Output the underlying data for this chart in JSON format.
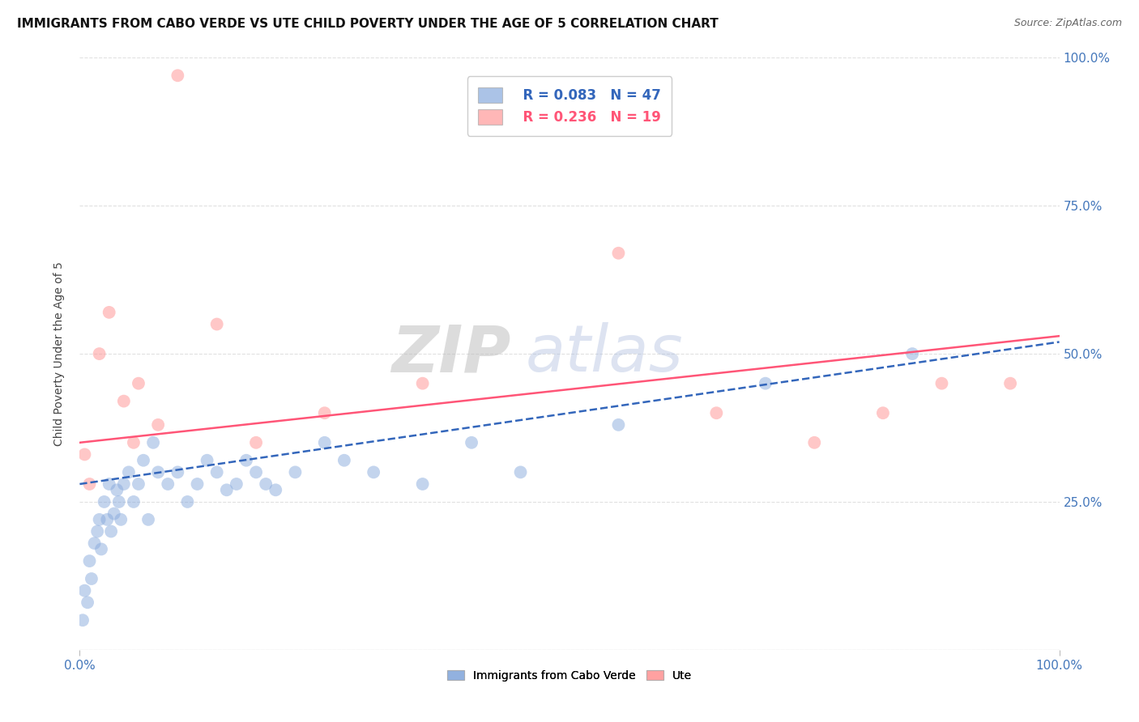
{
  "title": "IMMIGRANTS FROM CABO VERDE VS UTE CHILD POVERTY UNDER THE AGE OF 5 CORRELATION CHART",
  "source": "Source: ZipAtlas.com",
  "ylabel": "Child Poverty Under the Age of 5",
  "legend_blue_label": "Immigrants from Cabo Verde",
  "legend_pink_label": "Ute",
  "legend_blue_r": "R = 0.083",
  "legend_blue_n": "N = 47",
  "legend_pink_r": "R = 0.236",
  "legend_pink_n": "N = 19",
  "blue_color": "#88AADD",
  "pink_color": "#FF9999",
  "blue_line_color": "#3366BB",
  "pink_line_color": "#FF5577",
  "watermark_zip": "ZIP",
  "watermark_atlas": "atlas",
  "blue_x": [
    0.3,
    0.5,
    0.8,
    1.0,
    1.2,
    1.5,
    1.8,
    2.0,
    2.2,
    2.5,
    2.8,
    3.0,
    3.2,
    3.5,
    3.8,
    4.0,
    4.2,
    4.5,
    5.0,
    5.5,
    6.0,
    6.5,
    7.0,
    7.5,
    8.0,
    9.0,
    10.0,
    11.0,
    12.0,
    13.0,
    14.0,
    15.0,
    16.0,
    17.0,
    18.0,
    19.0,
    20.0,
    22.0,
    25.0,
    27.0,
    30.0,
    35.0,
    40.0,
    45.0,
    55.0,
    70.0,
    85.0
  ],
  "blue_y": [
    5.0,
    10.0,
    8.0,
    15.0,
    12.0,
    18.0,
    20.0,
    22.0,
    17.0,
    25.0,
    22.0,
    28.0,
    20.0,
    23.0,
    27.0,
    25.0,
    22.0,
    28.0,
    30.0,
    25.0,
    28.0,
    32.0,
    22.0,
    35.0,
    30.0,
    28.0,
    30.0,
    25.0,
    28.0,
    32.0,
    30.0,
    27.0,
    28.0,
    32.0,
    30.0,
    28.0,
    27.0,
    30.0,
    35.0,
    32.0,
    30.0,
    28.0,
    35.0,
    30.0,
    38.0,
    45.0,
    50.0
  ],
  "pink_x": [
    0.5,
    1.0,
    2.0,
    3.0,
    4.5,
    5.5,
    6.0,
    8.0,
    10.0,
    14.0,
    18.0,
    25.0,
    35.0,
    55.0,
    65.0,
    75.0,
    82.0,
    88.0,
    95.0
  ],
  "pink_y": [
    33.0,
    28.0,
    50.0,
    57.0,
    42.0,
    35.0,
    45.0,
    38.0,
    97.0,
    55.0,
    35.0,
    40.0,
    45.0,
    67.0,
    40.0,
    35.0,
    40.0,
    45.0,
    45.0
  ],
  "xlim": [
    0.0,
    100.0
  ],
  "ylim": [
    0.0,
    100.0
  ],
  "yticks": [
    0,
    25,
    50,
    75,
    100
  ],
  "right_ytick_labels": [
    "",
    "25.0%",
    "50.0%",
    "75.0%",
    "100.0%"
  ],
  "xtick_labels_left": "0.0%",
  "xtick_labels_right": "100.0%",
  "blue_line_x0": 0.0,
  "blue_line_y0": 28.0,
  "blue_line_x1": 100.0,
  "blue_line_y1": 52.0,
  "pink_line_x0": 0.0,
  "pink_line_y0": 35.0,
  "pink_line_x1": 100.0,
  "pink_line_y1": 53.0,
  "background_color": "#ffffff",
  "title_fontsize": 11,
  "axis_label_fontsize": 10,
  "tick_fontsize": 11,
  "source_fontsize": 9,
  "legend_fontsize": 12
}
